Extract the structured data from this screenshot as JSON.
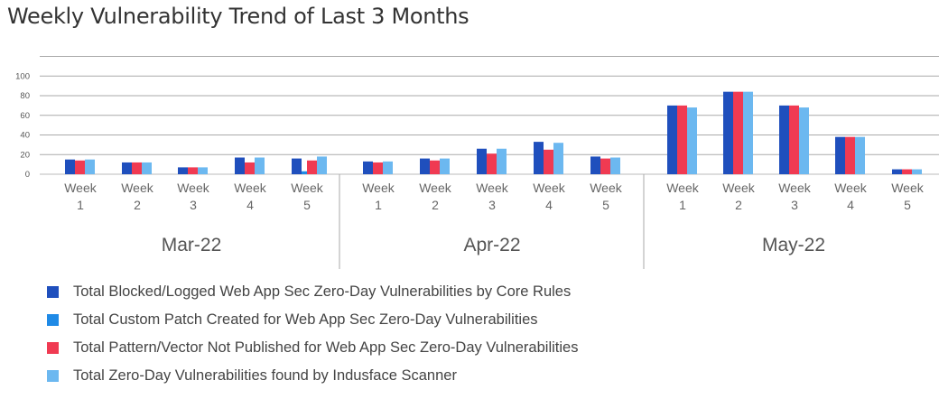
{
  "title": "Weekly Vulnerability Trend of Last 3 Months",
  "chart_data": {
    "type": "bar",
    "title": "Weekly Vulnerability Trend of Last 3 Months",
    "ylim": [
      0,
      120
    ],
    "yticks": [
      "0",
      "20",
      "40",
      "60",
      "80",
      "100",
      ""
    ],
    "grid": true,
    "legend_position": "bottom",
    "groups": [
      {
        "label": "Mar-22",
        "weeks": [
          "Week\n1",
          "Week\n2",
          "Week\n3",
          "Week\n4",
          "Week\n5"
        ]
      },
      {
        "label": "Apr-22",
        "weeks": [
          "Week\n1",
          "Week\n2",
          "Week\n3",
          "Week\n4",
          "Week\n5"
        ]
      },
      {
        "label": "May-22",
        "weeks": [
          "Week\n1",
          "Week\n2",
          "Week\n3",
          "Week\n4",
          "Week\n5"
        ]
      }
    ],
    "series": [
      {
        "name": "Total Blocked/Logged Web App Sec Zero-Day Vulnerabilities by Core Rules",
        "color": "#1f4fbd",
        "values": [
          15,
          12,
          7,
          17,
          16,
          13,
          16,
          26,
          33,
          18,
          70,
          84,
          70,
          38,
          5
        ]
      },
      {
        "name": "Total Custom Patch Created for Web App Sec Zero-Day Vulnerabilities",
        "color": "#1f8ae6",
        "values": [
          0,
          0,
          0,
          0,
          3,
          0,
          0,
          0,
          0,
          0,
          0,
          0,
          0,
          0,
          0
        ]
      },
      {
        "name": "Total Pattern/Vector Not Published for Web App Sec Zero-Day Vulnerabilities",
        "color": "#f03a52",
        "values": [
          14,
          12,
          7,
          12,
          14,
          12,
          14,
          21,
          25,
          16,
          70,
          84,
          70,
          38,
          5
        ]
      },
      {
        "name": "Total Zero-Day Vulnerabilities found by Indusface Scanner",
        "color": "#6cb8f0",
        "values": [
          15,
          12,
          7,
          17,
          18,
          13,
          16,
          26,
          32,
          17,
          68,
          84,
          68,
          38,
          5
        ]
      }
    ]
  }
}
